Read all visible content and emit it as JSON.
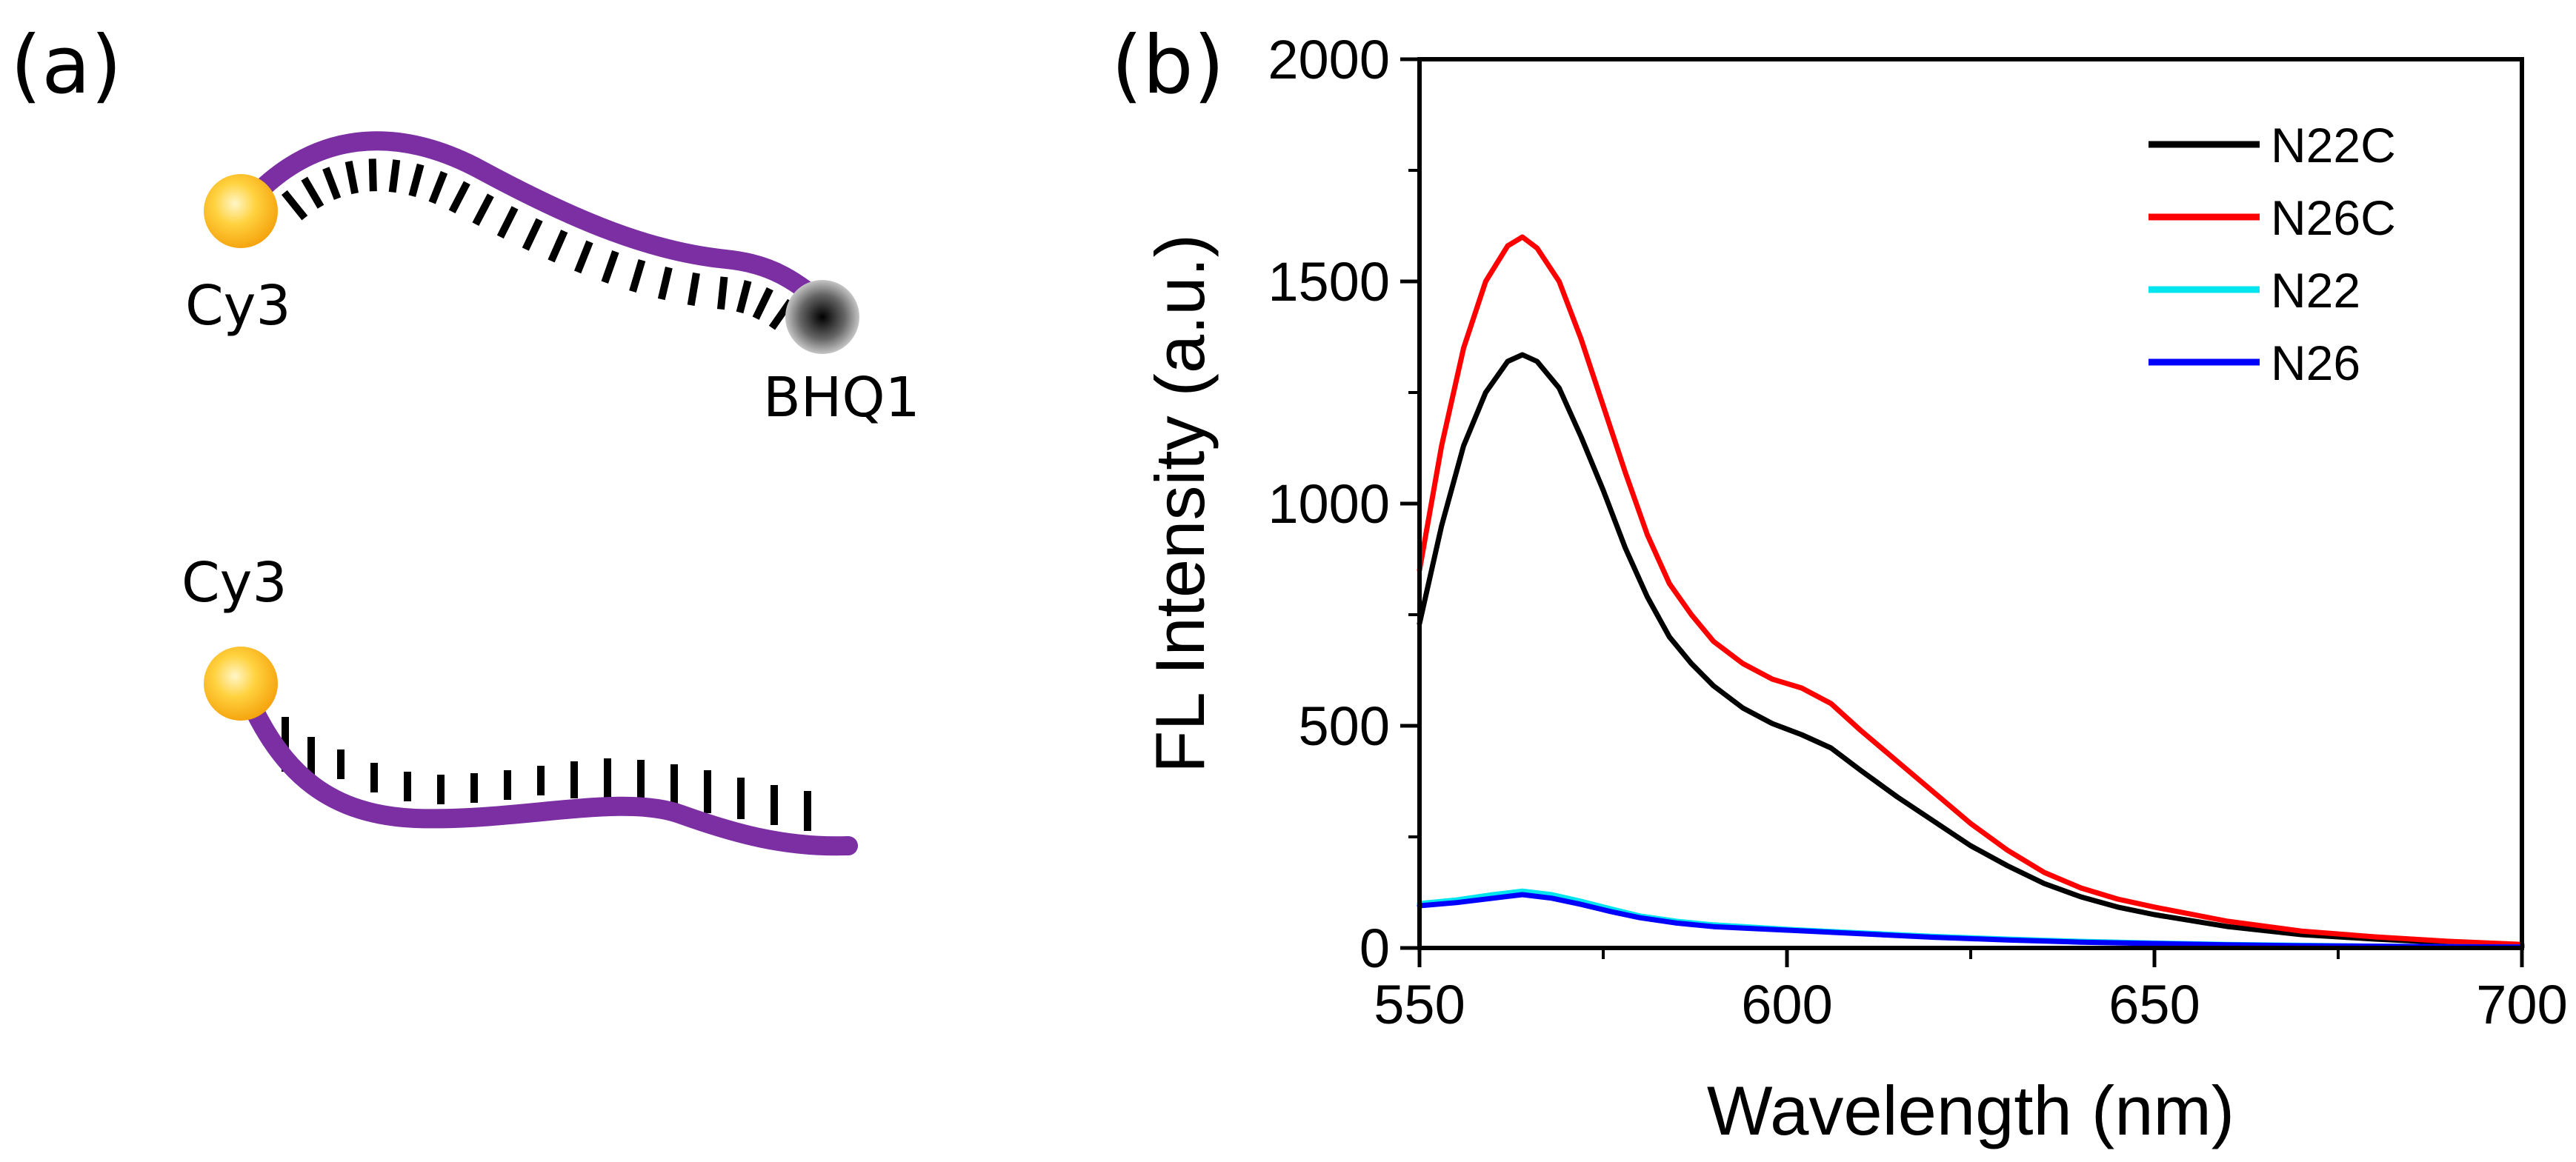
{
  "panels": {
    "a": {
      "label": "(a)",
      "top_strand": {
        "left_label": "Cy3",
        "right_label": "BHQ1"
      },
      "bottom_strand": {
        "left_label": "Cy3"
      },
      "colors": {
        "strand": "#7b2fa3",
        "fluorophore": "#f5b51e",
        "quencher": "#222222",
        "bases": "#000000"
      }
    },
    "b": {
      "label": "(b)"
    }
  },
  "chart_data": {
    "type": "line",
    "title": "",
    "xlabel": "Wavelength (nm)",
    "ylabel": "FL Intensity (a.u.)",
    "xlim": [
      550,
      700
    ],
    "ylim": [
      0,
      2000
    ],
    "xticks": [
      550,
      600,
      650,
      700
    ],
    "yticks": [
      0,
      500,
      1000,
      1500,
      2000
    ],
    "grid": false,
    "legend_position": "top-right",
    "series": [
      {
        "name": "N22C",
        "color": "#000000",
        "x": [
          550,
          553,
          556,
          559,
          562,
          564,
          566,
          569,
          572,
          575,
          578,
          581,
          584,
          587,
          590,
          594,
          598,
          602,
          606,
          610,
          615,
          620,
          625,
          630,
          635,
          640,
          645,
          650,
          660,
          670,
          680,
          690,
          700
        ],
        "y": [
          730,
          950,
          1130,
          1250,
          1320,
          1335,
          1320,
          1260,
          1150,
          1030,
          900,
          790,
          700,
          640,
          590,
          540,
          505,
          480,
          450,
          400,
          340,
          285,
          230,
          185,
          145,
          115,
          92,
          75,
          48,
          30,
          20,
          12,
          5
        ]
      },
      {
        "name": "N26C",
        "color": "#ff0000",
        "x": [
          550,
          553,
          556,
          559,
          562,
          564,
          566,
          569,
          572,
          575,
          578,
          581,
          584,
          587,
          590,
          594,
          598,
          602,
          606,
          610,
          615,
          620,
          625,
          630,
          635,
          640,
          645,
          650,
          660,
          670,
          680,
          690,
          700
        ],
        "y": [
          850,
          1130,
          1350,
          1500,
          1580,
          1600,
          1575,
          1500,
          1370,
          1220,
          1070,
          930,
          820,
          750,
          690,
          640,
          605,
          585,
          550,
          490,
          420,
          350,
          280,
          220,
          170,
          135,
          110,
          92,
          60,
          38,
          25,
          15,
          8
        ]
      },
      {
        "name": "N22",
        "color": "#00e5ee",
        "x": [
          550,
          555,
          560,
          564,
          568,
          572,
          576,
          580,
          585,
          590,
          600,
          610,
          620,
          630,
          640,
          650,
          660,
          670,
          680,
          690,
          700
        ],
        "y": [
          100,
          108,
          120,
          128,
          120,
          105,
          88,
          72,
          60,
          52,
          42,
          34,
          26,
          20,
          15,
          11,
          8,
          6,
          4,
          3,
          2
        ]
      },
      {
        "name": "N26",
        "color": "#0000ff",
        "x": [
          550,
          555,
          560,
          564,
          568,
          572,
          576,
          580,
          585,
          590,
          600,
          610,
          620,
          630,
          640,
          650,
          660,
          670,
          680,
          690,
          700
        ],
        "y": [
          95,
          102,
          112,
          120,
          112,
          98,
          82,
          68,
          56,
          48,
          40,
          32,
          24,
          18,
          13,
          10,
          7,
          5,
          4,
          3,
          2
        ]
      }
    ]
  }
}
